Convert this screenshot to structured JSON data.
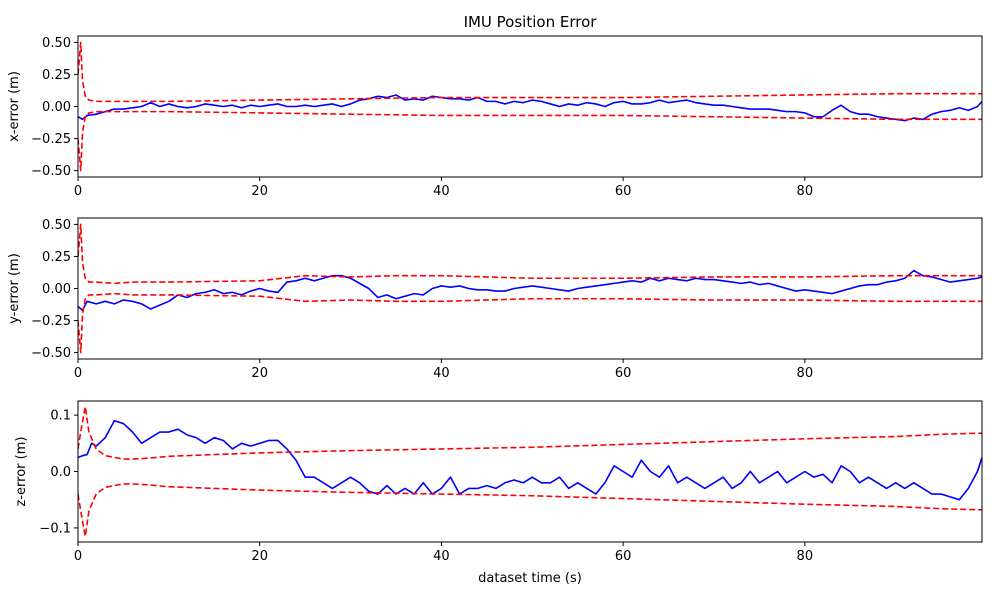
{
  "chart_data": [
    {
      "type": "line",
      "title": "IMU Position Error",
      "xlabel": "",
      "ylabel": "x-error (m)",
      "xlim": [
        0,
        99.5
      ],
      "ylim": [
        -0.55,
        0.55
      ],
      "xticks": [
        0,
        20,
        40,
        60,
        80
      ],
      "xtick_labels": [
        "0",
        "20",
        "40",
        "60",
        "80"
      ],
      "yticks": [
        0.5,
        0.25,
        0.0,
        -0.25,
        -0.5
      ],
      "ytick_labels": [
        "0.50",
        "0.25",
        "0.00",
        "−0.25",
        "−0.50"
      ],
      "grid": false,
      "series": [
        {
          "role": "error",
          "color": "#0000ff",
          "dashed": false,
          "x": [
            0,
            0.5,
            1,
            2,
            3,
            4,
            5,
            6,
            7,
            8,
            9,
            10,
            11,
            12,
            13,
            14,
            15,
            16,
            17,
            18,
            19,
            20,
            21,
            22,
            23,
            24,
            25,
            26,
            27,
            28,
            29,
            30,
            31,
            32,
            33,
            34,
            35,
            36,
            37,
            38,
            39,
            40,
            41,
            42,
            43,
            44,
            45,
            46,
            47,
            48,
            49,
            50,
            51,
            52,
            53,
            54,
            55,
            56,
            57,
            58,
            59,
            60,
            61,
            62,
            63,
            64,
            65,
            66,
            67,
            68,
            69,
            70,
            71,
            72,
            73,
            74,
            75,
            76,
            77,
            78,
            79,
            80,
            81,
            82,
            83,
            84,
            85,
            86,
            87,
            88,
            89,
            90,
            91,
            92,
            93,
            94,
            95,
            96,
            97,
            98,
            99,
            99.5
          ],
          "y": [
            -0.08,
            -0.1,
            -0.07,
            -0.06,
            -0.04,
            -0.02,
            -0.02,
            -0.01,
            0.0,
            0.03,
            0.0,
            0.02,
            0.0,
            -0.01,
            0.0,
            0.02,
            0.01,
            0.0,
            0.01,
            -0.01,
            0.01,
            0.0,
            0.01,
            0.02,
            0.0,
            0.0,
            0.01,
            0.0,
            0.01,
            0.02,
            0.0,
            0.02,
            0.05,
            0.06,
            0.08,
            0.07,
            0.09,
            0.05,
            0.06,
            0.05,
            0.08,
            0.07,
            0.06,
            0.06,
            0.05,
            0.07,
            0.04,
            0.04,
            0.02,
            0.04,
            0.03,
            0.05,
            0.04,
            0.02,
            0.0,
            0.02,
            0.01,
            0.03,
            0.02,
            0.0,
            0.03,
            0.04,
            0.02,
            0.02,
            0.03,
            0.05,
            0.03,
            0.04,
            0.05,
            0.03,
            0.02,
            0.01,
            0.01,
            0.0,
            -0.01,
            -0.02,
            -0.02,
            -0.02,
            -0.03,
            -0.04,
            -0.04,
            -0.05,
            -0.08,
            -0.08,
            -0.03,
            0.01,
            -0.04,
            -0.06,
            -0.06,
            -0.08,
            -0.09,
            -0.1,
            -0.11,
            -0.09,
            -0.1,
            -0.06,
            -0.04,
            -0.03,
            -0.01,
            -0.03,
            0.0,
            0.04
          ]
        },
        {
          "role": "upper bound",
          "color": "#ff0000",
          "dashed": true,
          "x": [
            0,
            0.3,
            0.5,
            0.8,
            1.2,
            2,
            5,
            10,
            20,
            30,
            40,
            50,
            60,
            70,
            80,
            90,
            99.5
          ],
          "y": [
            0.25,
            0.5,
            0.2,
            0.08,
            0.05,
            0.04,
            0.04,
            0.04,
            0.05,
            0.06,
            0.07,
            0.07,
            0.07,
            0.08,
            0.09,
            0.1,
            0.1
          ]
        },
        {
          "role": "lower bound",
          "color": "#ff0000",
          "dashed": true,
          "x": [
            0,
            0.3,
            0.5,
            0.8,
            1.2,
            2,
            5,
            10,
            20,
            30,
            40,
            50,
            60,
            70,
            80,
            90,
            99.5
          ],
          "y": [
            -0.25,
            -0.5,
            -0.2,
            -0.08,
            -0.05,
            -0.04,
            -0.04,
            -0.04,
            -0.05,
            -0.06,
            -0.07,
            -0.07,
            -0.07,
            -0.08,
            -0.09,
            -0.1,
            -0.1
          ]
        }
      ]
    },
    {
      "type": "line",
      "title": "",
      "xlabel": "",
      "ylabel": "y-error (m)",
      "xlim": [
        0,
        99.5
      ],
      "ylim": [
        -0.55,
        0.55
      ],
      "xticks": [
        0,
        20,
        40,
        60,
        80
      ],
      "xtick_labels": [
        "0",
        "20",
        "40",
        "60",
        "80"
      ],
      "yticks": [
        0.5,
        0.25,
        0.0,
        -0.25,
        -0.5
      ],
      "ytick_labels": [
        "0.50",
        "0.25",
        "0.00",
        "−0.25",
        "−0.50"
      ],
      "grid": false,
      "series": [
        {
          "role": "error",
          "color": "#0000ff",
          "dashed": false,
          "x": [
            0,
            0.5,
            1,
            2,
            3,
            4,
            5,
            6,
            7,
            8,
            9,
            10,
            11,
            12,
            13,
            14,
            15,
            16,
            17,
            18,
            19,
            20,
            21,
            22,
            23,
            24,
            25,
            26,
            27,
            28,
            29,
            30,
            31,
            32,
            33,
            34,
            35,
            36,
            37,
            38,
            39,
            40,
            41,
            42,
            43,
            44,
            45,
            46,
            47,
            48,
            49,
            50,
            51,
            52,
            53,
            54,
            55,
            56,
            57,
            58,
            59,
            60,
            61,
            62,
            63,
            64,
            65,
            66,
            67,
            68,
            69,
            70,
            71,
            72,
            73,
            74,
            75,
            76,
            77,
            78,
            79,
            80,
            81,
            82,
            83,
            84,
            85,
            86,
            87,
            88,
            89,
            90,
            91,
            92,
            93,
            94,
            95,
            96,
            97,
            98,
            99,
            99.5
          ],
          "y": [
            -0.14,
            -0.17,
            -0.1,
            -0.12,
            -0.1,
            -0.12,
            -0.09,
            -0.1,
            -0.12,
            -0.16,
            -0.13,
            -0.1,
            -0.05,
            -0.07,
            -0.04,
            -0.03,
            -0.01,
            -0.04,
            -0.03,
            -0.05,
            -0.02,
            0.0,
            -0.02,
            -0.03,
            0.05,
            0.06,
            0.08,
            0.06,
            0.08,
            0.1,
            0.1,
            0.08,
            0.04,
            0.0,
            -0.07,
            -0.05,
            -0.08,
            -0.06,
            -0.04,
            -0.05,
            0.0,
            0.02,
            0.01,
            0.02,
            0.0,
            -0.01,
            -0.01,
            -0.02,
            -0.02,
            0.0,
            0.01,
            0.02,
            0.01,
            0.0,
            -0.01,
            -0.02,
            0.0,
            0.01,
            0.02,
            0.03,
            0.04,
            0.05,
            0.06,
            0.05,
            0.08,
            0.06,
            0.08,
            0.07,
            0.06,
            0.08,
            0.07,
            0.07,
            0.06,
            0.05,
            0.04,
            0.05,
            0.03,
            0.04,
            0.02,
            0.0,
            -0.02,
            -0.01,
            -0.02,
            -0.03,
            -0.04,
            -0.02,
            0.0,
            0.02,
            0.03,
            0.03,
            0.05,
            0.06,
            0.08,
            0.14,
            0.1,
            0.09,
            0.07,
            0.05,
            0.06,
            0.07,
            0.08,
            0.09
          ]
        },
        {
          "role": "upper bound",
          "color": "#ff0000",
          "dashed": true,
          "x": [
            0,
            0.3,
            0.5,
            0.8,
            1.2,
            2,
            4,
            6,
            10,
            20,
            25,
            30,
            35,
            40,
            50,
            60,
            70,
            80,
            90,
            99.5
          ],
          "y": [
            0.25,
            0.5,
            0.2,
            0.08,
            0.05,
            0.05,
            0.04,
            0.05,
            0.05,
            0.06,
            0.1,
            0.09,
            0.1,
            0.1,
            0.08,
            0.08,
            0.09,
            0.09,
            0.1,
            0.1
          ]
        },
        {
          "role": "lower bound",
          "color": "#ff0000",
          "dashed": true,
          "x": [
            0,
            0.3,
            0.5,
            0.8,
            1.2,
            2,
            4,
            6,
            10,
            20,
            25,
            30,
            35,
            40,
            50,
            60,
            70,
            80,
            90,
            99.5
          ],
          "y": [
            -0.25,
            -0.5,
            -0.2,
            -0.08,
            -0.05,
            -0.05,
            -0.04,
            -0.05,
            -0.05,
            -0.06,
            -0.1,
            -0.09,
            -0.1,
            -0.1,
            -0.08,
            -0.08,
            -0.09,
            -0.09,
            -0.1,
            -0.1
          ]
        }
      ]
    },
    {
      "type": "line",
      "title": "",
      "xlabel": "dataset time (s)",
      "ylabel": "z-error (m)",
      "xlim": [
        0,
        99.5
      ],
      "ylim": [
        -0.125,
        0.125
      ],
      "xticks": [
        0,
        20,
        40,
        60,
        80
      ],
      "xtick_labels": [
        "0",
        "20",
        "40",
        "60",
        "80"
      ],
      "yticks": [
        0.1,
        0.0,
        -0.1
      ],
      "ytick_labels": [
        "0.1",
        "0.0",
        "−0.1"
      ],
      "grid": false,
      "series": [
        {
          "role": "error",
          "color": "#0000ff",
          "dashed": false,
          "x": [
            0,
            0.5,
            1,
            1.5,
            2,
            3,
            4,
            5,
            6,
            7,
            8,
            9,
            10,
            11,
            12,
            13,
            14,
            15,
            16,
            17,
            18,
            19,
            20,
            21,
            22,
            23,
            24,
            25,
            26,
            27,
            28,
            29,
            30,
            31,
            32,
            33,
            34,
            35,
            36,
            37,
            38,
            39,
            40,
            41,
            42,
            43,
            44,
            45,
            46,
            47,
            48,
            49,
            50,
            51,
            52,
            53,
            54,
            55,
            56,
            57,
            58,
            59,
            60,
            61,
            62,
            63,
            64,
            65,
            66,
            67,
            68,
            69,
            70,
            71,
            72,
            73,
            74,
            75,
            76,
            77,
            78,
            79,
            80,
            81,
            82,
            83,
            84,
            85,
            86,
            87,
            88,
            89,
            90,
            91,
            92,
            93,
            94,
            95,
            96,
            97,
            98,
            99,
            99.5
          ],
          "y": [
            0.025,
            0.028,
            0.03,
            0.05,
            0.045,
            0.06,
            0.09,
            0.085,
            0.07,
            0.05,
            0.06,
            0.07,
            0.07,
            0.075,
            0.065,
            0.06,
            0.05,
            0.06,
            0.055,
            0.04,
            0.05,
            0.045,
            0.05,
            0.055,
            0.055,
            0.04,
            0.02,
            -0.01,
            -0.01,
            -0.02,
            -0.03,
            -0.02,
            -0.01,
            -0.02,
            -0.035,
            -0.04,
            -0.025,
            -0.04,
            -0.03,
            -0.04,
            -0.02,
            -0.04,
            -0.03,
            -0.01,
            -0.04,
            -0.03,
            -0.03,
            -0.025,
            -0.03,
            -0.02,
            -0.015,
            -0.02,
            -0.01,
            -0.02,
            -0.02,
            -0.01,
            -0.03,
            -0.02,
            -0.03,
            -0.04,
            -0.02,
            0.01,
            0.0,
            -0.01,
            0.02,
            0.0,
            -0.01,
            0.01,
            -0.02,
            -0.01,
            -0.02,
            -0.03,
            -0.02,
            -0.01,
            -0.03,
            -0.02,
            0.0,
            -0.02,
            -0.01,
            0.0,
            -0.02,
            -0.01,
            0.0,
            -0.01,
            -0.005,
            -0.02,
            0.01,
            0.0,
            -0.02,
            -0.01,
            -0.02,
            -0.03,
            -0.02,
            -0.03,
            -0.02,
            -0.03,
            -0.04,
            -0.04,
            -0.045,
            -0.05,
            -0.03,
            0.0,
            0.025
          ]
        },
        {
          "role": "upper bound",
          "color": "#ff0000",
          "dashed": true,
          "x": [
            0,
            0.3,
            0.8,
            1.2,
            2,
            3,
            4,
            5,
            6,
            8,
            10,
            15,
            20,
            25,
            30,
            40,
            50,
            60,
            70,
            80,
            90,
            95,
            99.5
          ],
          "y": [
            0.04,
            0.07,
            0.115,
            0.07,
            0.04,
            0.028,
            0.025,
            0.022,
            0.022,
            0.024,
            0.027,
            0.03,
            0.033,
            0.035,
            0.037,
            0.04,
            0.043,
            0.048,
            0.053,
            0.058,
            0.062,
            0.066,
            0.068
          ]
        },
        {
          "role": "lower bound",
          "color": "#ff0000",
          "dashed": true,
          "x": [
            0,
            0.3,
            0.8,
            1.2,
            2,
            3,
            4,
            5,
            6,
            8,
            10,
            15,
            20,
            25,
            30,
            40,
            50,
            60,
            70,
            80,
            90,
            95,
            99.5
          ],
          "y": [
            -0.04,
            -0.07,
            -0.115,
            -0.07,
            -0.04,
            -0.028,
            -0.025,
            -0.022,
            -0.022,
            -0.024,
            -0.027,
            -0.03,
            -0.033,
            -0.035,
            -0.037,
            -0.04,
            -0.043,
            -0.048,
            -0.053,
            -0.058,
            -0.062,
            -0.066,
            -0.068
          ]
        }
      ]
    }
  ]
}
